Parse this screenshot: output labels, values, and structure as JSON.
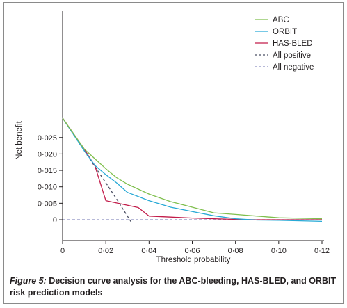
{
  "caption": {
    "label": "Figure 5:",
    "text": "Decision curve analysis for the ABC-bleeding, HAS-BLED, and ORBIT risk prediction models"
  },
  "chart_data": {
    "type": "line",
    "xlabel": "Threshold probability",
    "ylabel": "Net benefit",
    "xlim": [
      0,
      0.12
    ],
    "ylim": [
      -0.001,
      0.031
    ],
    "xticks": [
      0,
      0.02,
      0.04,
      0.06,
      0.08,
      0.1,
      0.12
    ],
    "xtick_labels": [
      "0",
      "0·02",
      "0·04",
      "0·06",
      "0·08",
      "0·10",
      "0·12"
    ],
    "yticks": [
      0,
      0.005,
      0.01,
      0.015,
      0.02,
      0.025
    ],
    "ytick_labels": [
      "0",
      "0·005",
      "0·010",
      "0·015",
      "0·020",
      "0·025"
    ],
    "grid": false,
    "legend_position": "top-right",
    "series": [
      {
        "name": "ABC",
        "color": "#7fbf4d",
        "dash": false,
        "points": [
          [
            0,
            0.0309
          ],
          [
            0.01,
            0.0215
          ],
          [
            0.02,
            0.0155
          ],
          [
            0.025,
            0.0128
          ],
          [
            0.03,
            0.0108
          ],
          [
            0.04,
            0.0078
          ],
          [
            0.05,
            0.0055
          ],
          [
            0.06,
            0.0038
          ],
          [
            0.07,
            0.0021
          ],
          [
            0.08,
            0.0016
          ],
          [
            0.09,
            0.0011
          ],
          [
            0.1,
            0.0006
          ],
          [
            0.12,
            0.0003
          ]
        ]
      },
      {
        "name": "ORBIT",
        "color": "#27a9d6",
        "dash": false,
        "points": [
          [
            0,
            0.0309
          ],
          [
            0.01,
            0.021
          ],
          [
            0.015,
            0.0165
          ],
          [
            0.02,
            0.0137
          ],
          [
            0.025,
            0.0112
          ],
          [
            0.03,
            0.0083
          ],
          [
            0.04,
            0.0058
          ],
          [
            0.05,
            0.0038
          ],
          [
            0.06,
            0.0025
          ],
          [
            0.07,
            0.0012
          ],
          [
            0.08,
            0.0003
          ],
          [
            0.09,
            -0.0001
          ],
          [
            0.1,
            -0.0002
          ],
          [
            0.12,
            -0.0005
          ]
        ]
      },
      {
        "name": "HAS-BLED",
        "color": "#c21c4a",
        "dash": false,
        "points": [
          [
            0,
            0.0309
          ],
          [
            0.01,
            0.0215
          ],
          [
            0.015,
            0.0163
          ],
          [
            0.02,
            0.0058
          ],
          [
            0.035,
            0.0037
          ],
          [
            0.04,
            0.0011
          ],
          [
            0.05,
            0.0008
          ],
          [
            0.06,
            0.0005
          ],
          [
            0.07,
            0.0003
          ],
          [
            0.08,
            0.0001
          ],
          [
            0.09,
            0.0
          ],
          [
            0.1,
            0.0
          ],
          [
            0.12,
            0.0
          ]
        ]
      },
      {
        "name": "All positive",
        "color": "#4b4f63",
        "dash": true,
        "points": [
          [
            0,
            0.0309
          ],
          [
            0.01,
            0.021
          ],
          [
            0.02,
            0.0112
          ],
          [
            0.025,
            0.0063
          ],
          [
            0.032,
            -0.001
          ]
        ]
      },
      {
        "name": "All negative",
        "color": "#8c8fc0",
        "dash": true,
        "points": [
          [
            0,
            0
          ],
          [
            0.12,
            0
          ]
        ]
      }
    ]
  }
}
